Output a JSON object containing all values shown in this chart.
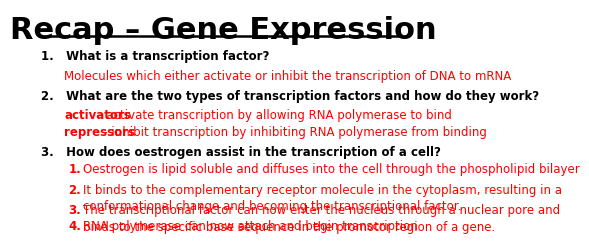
{
  "title": "Recap – Gene Expression",
  "bg_color": "#ffffff",
  "title_color": "#000000",
  "title_fontsize": 22,
  "black_color": "#000000",
  "red_color": "#ff0000",
  "body_fontsize": 8.5,
  "q1_label": "1.   What is a transcription factor?",
  "q1_answer": "Molecules which either activate or inhibit the transcription of DNA to mRNA",
  "q2_label": "2.   What are the two types of transcription factors and how do they work?",
  "q2_answer1_bold": "activators",
  "q2_answer1_rest": " – activate transcription by allowing RNA polymerase to bind",
  "q2_answer2_bold": "repressors",
  "q2_answer2_rest": " – inhibit transcription by inhibiting RNA polymerase from binding",
  "q3_label": "3.   How does oestrogen assist in the transcription of a cell?",
  "q3_answers": [
    "Oestrogen is lipid soluble and diffuses into the cell through the phospholipid bilayer",
    "It binds to the complementary receptor molecule in the cytoplasm, resulting in a\nconformational change and becoming the transcriptional factor.",
    "The transcriptional factor can now enter the nucleus through a nuclear pore and\nbinds to the specific base sequence in the promotor region of a gene.",
    "RNA polymerase can now attach and begin transcription"
  ]
}
